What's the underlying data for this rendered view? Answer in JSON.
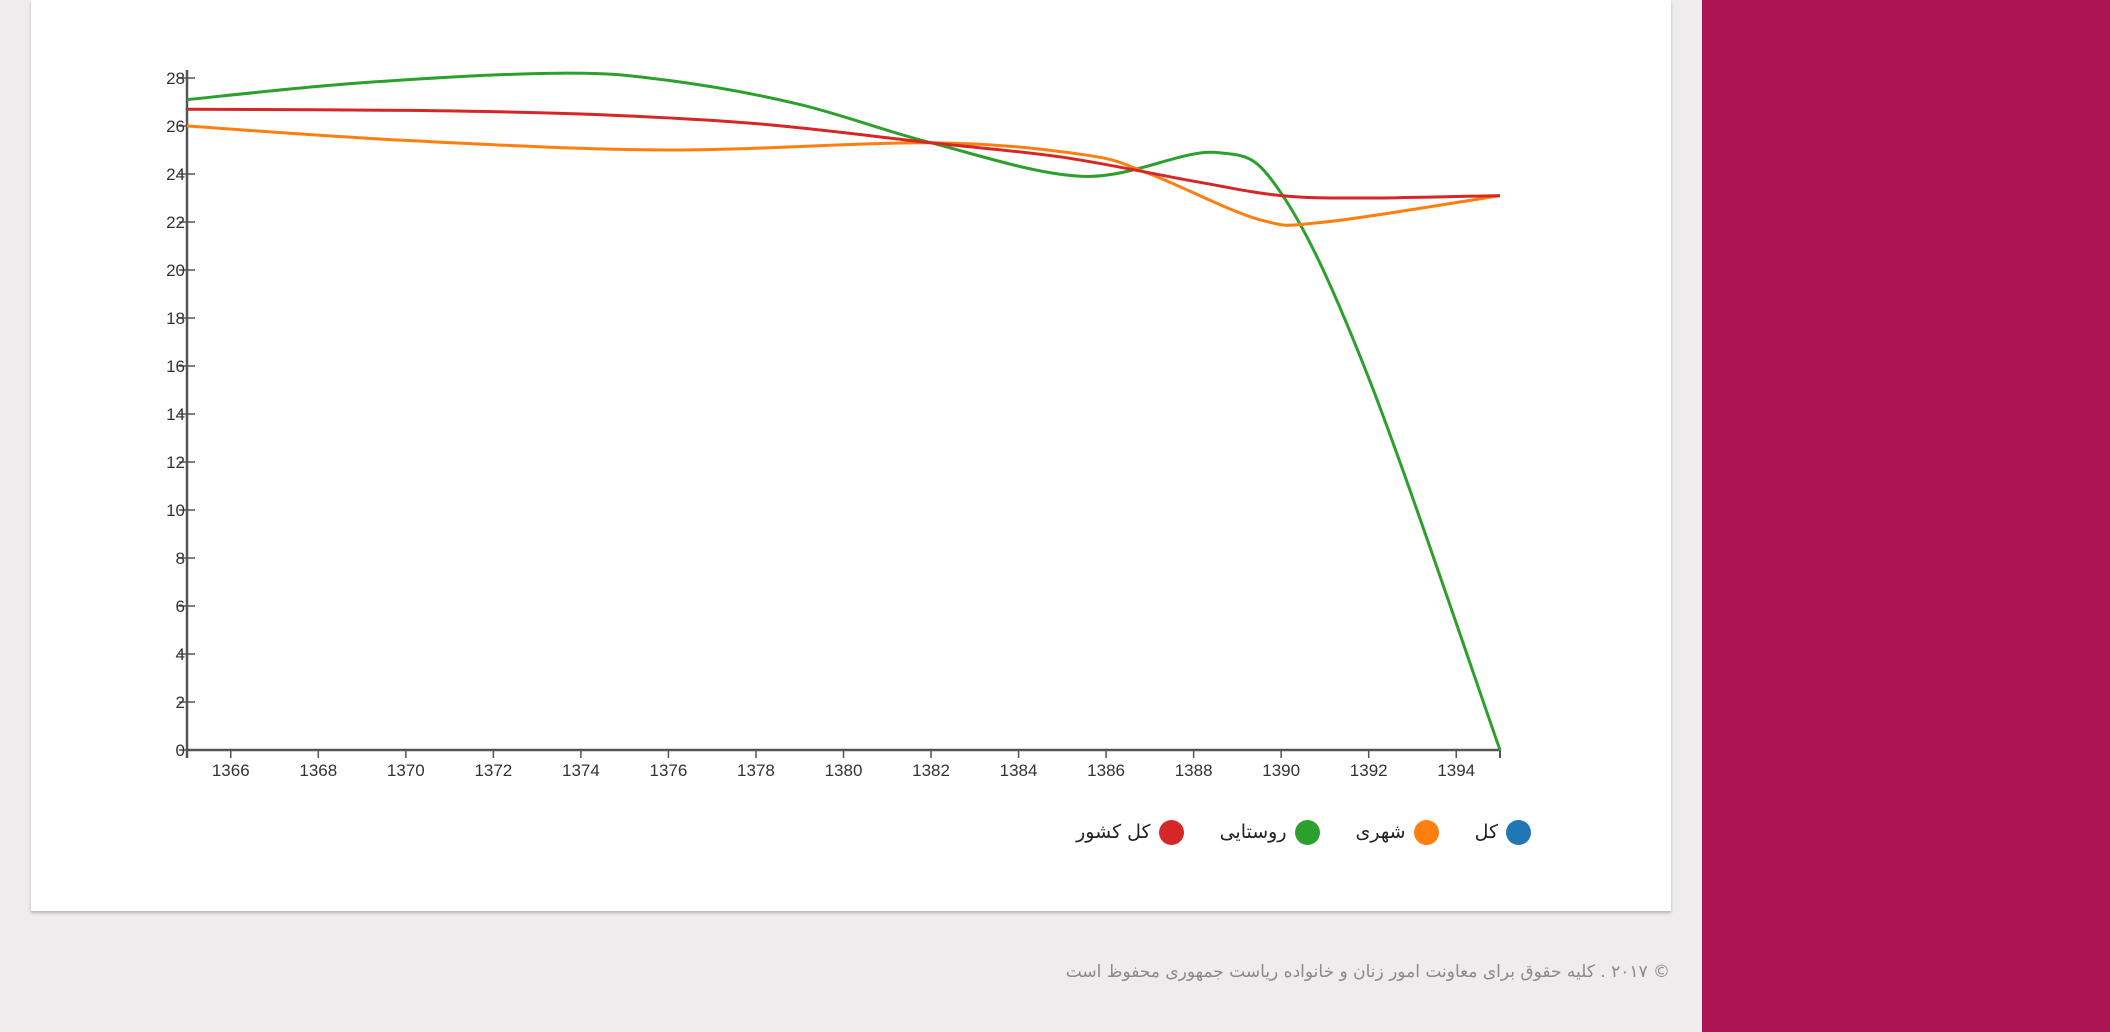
{
  "colors": {
    "sidebar": "#ab1353",
    "axis": "#555555"
  },
  "legend": [
    {
      "label": "کل",
      "color": "#1f77b4"
    },
    {
      "label": "شهری",
      "color": "#ff7f0e"
    },
    {
      "label": "روستایی",
      "color": "#2ca02c"
    },
    {
      "label": "کل کشور",
      "color": "#d62728"
    }
  ],
  "footer": {
    "text": "© ۲۰۱۷ . کلیه حقوق برای معاونت امور زنان و خانواده ریاست جمهوری محفوظ است"
  },
  "chart_data": {
    "type": "line",
    "curve": "smooth",
    "x": [
      1365,
      1373,
      1376,
      1382,
      1386,
      1388.5,
      1391,
      1395
    ],
    "xticks": [
      1366,
      1368,
      1370,
      1372,
      1374,
      1376,
      1378,
      1380,
      1382,
      1384,
      1386,
      1388,
      1390,
      1392,
      1394
    ],
    "yticks": [
      0,
      2,
      4,
      6,
      8,
      10,
      12,
      14,
      16,
      18,
      20,
      22,
      24,
      26,
      28
    ],
    "xlim": [
      1365,
      1395
    ],
    "ylim": [
      0,
      28
    ],
    "grid": false,
    "series": [
      {
        "name": "روستایی",
        "color": "#2ca02c",
        "points": [
          [
            1365,
            27.1
          ],
          [
            1369,
            27.8
          ],
          [
            1373.5,
            28.2
          ],
          [
            1376,
            27.9
          ],
          [
            1379,
            26.9
          ],
          [
            1382,
            25.3
          ],
          [
            1385.5,
            23.9
          ],
          [
            1388.5,
            24.9
          ],
          [
            1390,
            23.2
          ],
          [
            1392,
            15.5
          ],
          [
            1395,
            0
          ]
        ]
      },
      {
        "name": "شهری",
        "color": "#ff7f0e",
        "points": [
          [
            1365,
            26.0
          ],
          [
            1370,
            25.4
          ],
          [
            1376,
            25.0
          ],
          [
            1382,
            25.3
          ],
          [
            1385.5,
            24.8
          ],
          [
            1387,
            24.0
          ],
          [
            1389.5,
            22.1
          ],
          [
            1391,
            22.0
          ],
          [
            1395,
            23.1
          ]
        ]
      },
      {
        "name": "کل کشور",
        "color": "#d62728",
        "points": [
          [
            1365,
            26.7
          ],
          [
            1370,
            26.65
          ],
          [
            1374,
            26.5
          ],
          [
            1378,
            26.1
          ],
          [
            1382,
            25.3
          ],
          [
            1385,
            24.7
          ],
          [
            1388,
            23.7
          ],
          [
            1390,
            23.1
          ],
          [
            1392,
            23.0
          ],
          [
            1395,
            23.1
          ]
        ]
      }
    ]
  }
}
